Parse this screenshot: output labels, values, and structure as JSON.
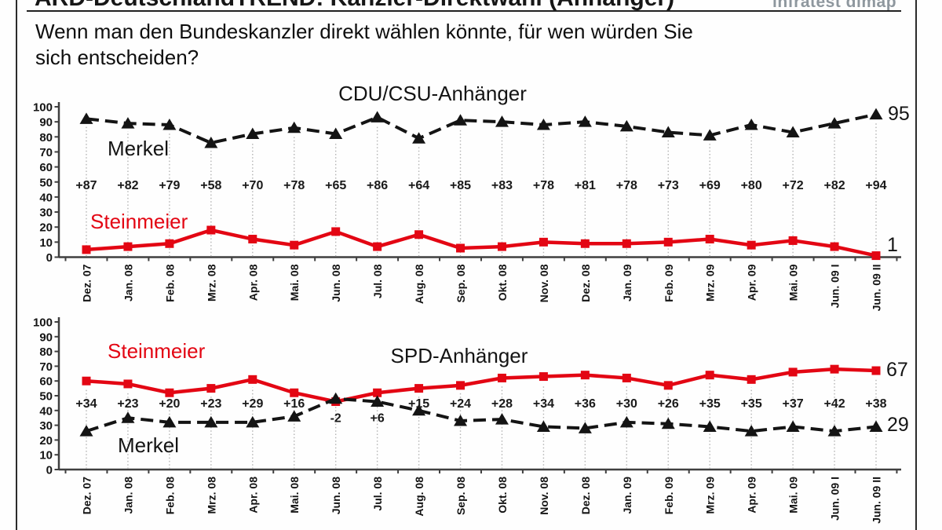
{
  "header": {
    "title": "ARD-DeutschlandTREND: Kanzler-Direktwahl (Anhänger)",
    "brand": "infratest dimap",
    "question": "Wenn man den Bundeskanzler direkt wählen könnte, für wen würden Sie\nsich entscheiden?"
  },
  "colors": {
    "merkel": "#141414",
    "steinmeier": "#e30613",
    "grid": "#b3b3b3",
    "axis": "#3f3f3f",
    "diff_label": "#1a1a1a",
    "brand_gray": "#8e979e"
  },
  "chart_data": [
    {
      "type": "line",
      "title": "CDU/CSU-Anhänger",
      "xlabel": "",
      "ylabel": "",
      "ylim": [
        0,
        100
      ],
      "yticks": [
        0,
        10,
        20,
        30,
        40,
        50,
        60,
        70,
        80,
        90,
        100
      ],
      "grid": "vertical-dotted",
      "legend": "inline-labels",
      "categories": [
        "Dez. 07",
        "Jan. 08",
        "Feb. 08",
        "Mrz. 08",
        "Apr. 08",
        "Mai. 08",
        "Jun. 08",
        "Jul. 08",
        "Aug. 08",
        "Sep. 08",
        "Okt. 08",
        "Nov. 08",
        "Dez. 08",
        "Jan. 09",
        "Feb. 09",
        "Mrz. 09",
        "Apr. 09",
        "Mai. 09",
        "Jun. 09 I",
        "Jun. 09 II"
      ],
      "series": [
        {
          "name": "Merkel",
          "marker": "triangle",
          "dashed": true,
          "color_key": "merkel",
          "values": [
            92,
            89,
            88,
            76,
            82,
            86,
            82,
            93,
            79,
            91,
            90,
            88,
            90,
            87,
            83,
            81,
            88,
            83,
            89,
            95
          ],
          "end_label": "95"
        },
        {
          "name": "Steinmeier",
          "marker": "square",
          "dashed": false,
          "color_key": "steinmeier",
          "values": [
            5,
            7,
            9,
            18,
            12,
            8,
            17,
            7,
            15,
            6,
            7,
            10,
            9,
            9,
            10,
            12,
            8,
            11,
            7,
            1
          ],
          "end_label": "1"
        }
      ],
      "diff_labels": [
        "+87",
        "+82",
        "+79",
        "+58",
        "+70",
        "+78",
        "+65",
        "+86",
        "+64",
        "+85",
        "+83",
        "+78",
        "+81",
        "+78",
        "+73",
        "+69",
        "+80",
        "+72",
        "+82",
        "+94"
      ]
    },
    {
      "type": "line",
      "title": "SPD-Anhänger",
      "xlabel": "",
      "ylabel": "",
      "ylim": [
        0,
        100
      ],
      "yticks": [
        0,
        10,
        20,
        30,
        40,
        50,
        60,
        70,
        80,
        90,
        100
      ],
      "grid": "vertical-dotted",
      "legend": "inline-labels",
      "categories": [
        "Dez. 07",
        "Jan. 08",
        "Feb. 08",
        "Mrz. 08",
        "Apr. 08",
        "Mai. 08",
        "Jun. 08",
        "Jul. 08",
        "Aug. 08",
        "Sep. 08",
        "Okt. 08",
        "Nov. 08",
        "Dez. 08",
        "Jan. 09",
        "Feb. 09",
        "Mrz. 09",
        "Apr. 09",
        "Mai. 09",
        "Jun. 09 I",
        "Jun. 09 II"
      ],
      "series": [
        {
          "name": "Merkel",
          "marker": "triangle",
          "dashed": true,
          "color_key": "merkel",
          "values": [
            26,
            35,
            32,
            32,
            32,
            36,
            48,
            46,
            40,
            33,
            34,
            29,
            28,
            32,
            31,
            29,
            26,
            29,
            26,
            29
          ],
          "end_label": "29"
        },
        {
          "name": "Steinmeier",
          "marker": "square",
          "dashed": false,
          "color_key": "steinmeier",
          "values": [
            60,
            58,
            52,
            55,
            61,
            52,
            46,
            52,
            55,
            57,
            62,
            63,
            64,
            62,
            57,
            64,
            61,
            66,
            68,
            67
          ],
          "end_label": "67"
        }
      ],
      "diff_labels": [
        "+34",
        "+23",
        "+20",
        "+23",
        "+29",
        "+16",
        "-2",
        "+6",
        "+15",
        "+24",
        "+28",
        "+34",
        "+36",
        "+30",
        "+26",
        "+35",
        "+35",
        "+37",
        "+42",
        "+38"
      ]
    }
  ]
}
